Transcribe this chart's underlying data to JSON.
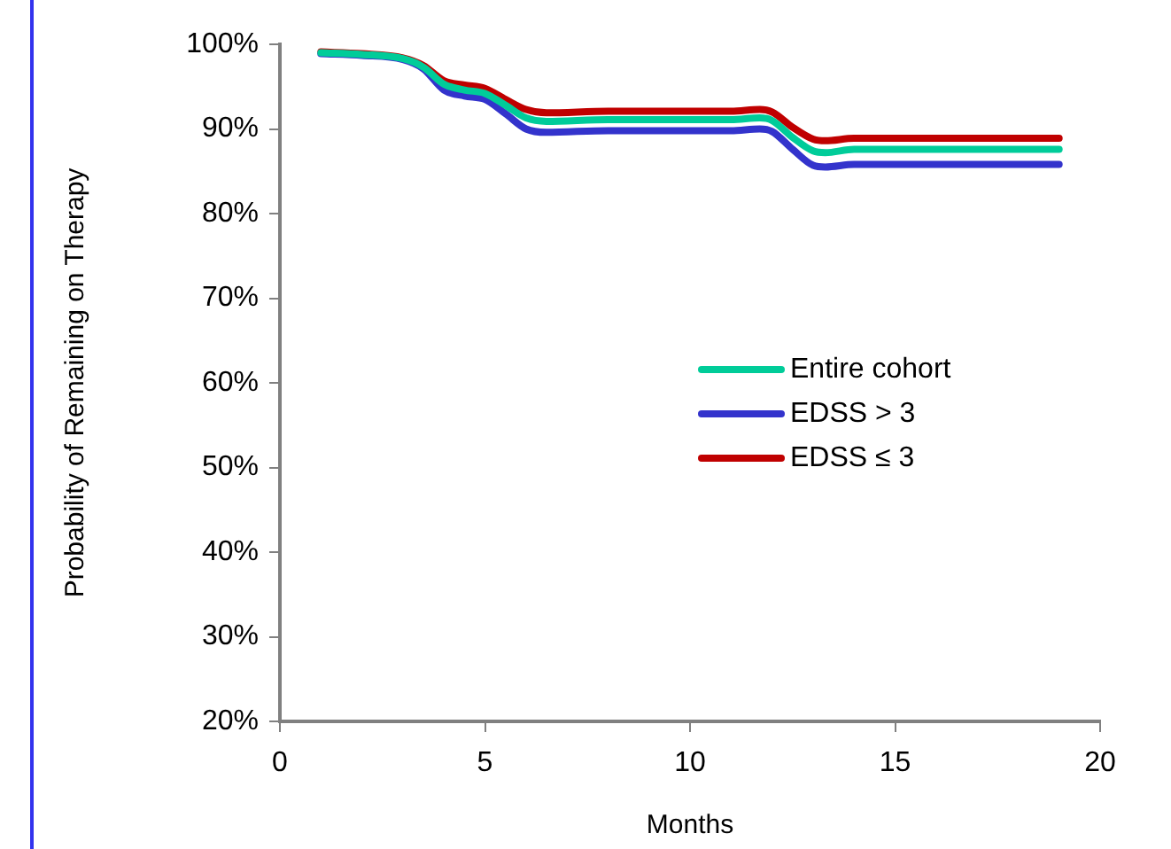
{
  "chart_data": {
    "type": "line",
    "xlabel": "Months",
    "ylabel": "Probability of Remaining on Therapy",
    "x": [
      1,
      2,
      3,
      3.5,
      4,
      4.5,
      5,
      5.5,
      6,
      6.5,
      8,
      10,
      11,
      11.7,
      12,
      12.5,
      13,
      13.3,
      14,
      19
    ],
    "xlim": [
      0,
      20
    ],
    "xticks": [
      0,
      5,
      10,
      15,
      20
    ],
    "ylim": [
      20,
      100
    ],
    "yticks": [
      {
        "value": 20,
        "label": "20%"
      },
      {
        "value": 30,
        "label": "30%"
      },
      {
        "value": 40,
        "label": "40%"
      },
      {
        "value": 50,
        "label": "50%"
      },
      {
        "value": 60,
        "label": "60%"
      },
      {
        "value": 70,
        "label": "70%"
      },
      {
        "value": 80,
        "label": "80%"
      },
      {
        "value": 90,
        "label": "90%"
      },
      {
        "value": 100,
        "label": "100%"
      }
    ],
    "legend": "right",
    "marker": "none",
    "line_style": "solid",
    "series": [
      {
        "name": "Entire cohort",
        "color": "#00cc99",
        "values": [
          99.0,
          98.8,
          98.3,
          97.3,
          95.3,
          94.6,
          94.2,
          92.8,
          91.3,
          90.9,
          91.1,
          91.1,
          91.1,
          91.3,
          91.0,
          89.0,
          87.4,
          87.2,
          87.6,
          87.6
        ]
      },
      {
        "name": "EDSS > 3",
        "color": "#3333cc",
        "values": [
          98.9,
          98.7,
          98.2,
          97.1,
          94.6,
          93.9,
          93.5,
          91.8,
          90.0,
          89.6,
          89.8,
          89.8,
          89.8,
          90.0,
          89.7,
          87.6,
          85.7,
          85.5,
          85.8,
          85.8
        ]
      },
      {
        "name": "EDSS ≤ 3",
        "color": "#c00000",
        "values": [
          99.1,
          98.9,
          98.4,
          97.5,
          95.7,
          95.2,
          94.8,
          93.5,
          92.3,
          91.9,
          92.1,
          92.1,
          92.1,
          92.3,
          92.0,
          90.2,
          88.8,
          88.6,
          88.9,
          88.9
        ]
      }
    ]
  }
}
